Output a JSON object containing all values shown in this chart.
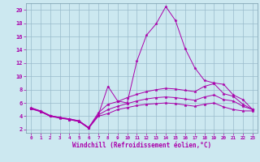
{
  "xlabel": "Windchill (Refroidissement éolien,°C)",
  "bg_color": "#cce8f0",
  "line_color": "#aa00aa",
  "grid_color": "#99bbcc",
  "xlim": [
    -0.5,
    23.5
  ],
  "ylim": [
    1.5,
    21.0
  ],
  "yticks": [
    2,
    4,
    6,
    8,
    10,
    12,
    14,
    16,
    18,
    20
  ],
  "xticks": [
    0,
    1,
    2,
    3,
    4,
    5,
    6,
    7,
    8,
    9,
    10,
    11,
    12,
    13,
    14,
    15,
    16,
    17,
    18,
    19,
    20,
    21,
    22,
    23
  ],
  "lines": [
    {
      "x": [
        0,
        1,
        2,
        3,
        4,
        5,
        6,
        7,
        8,
        9,
        10,
        11,
        12,
        13,
        14,
        15,
        16,
        17,
        18,
        19,
        20,
        21,
        22,
        23
      ],
      "y": [
        5.2,
        4.7,
        4.0,
        3.8,
        3.5,
        3.2,
        2.2,
        4.2,
        8.5,
        6.3,
        6.0,
        12.3,
        16.2,
        17.9,
        20.5,
        18.4,
        14.2,
        11.3,
        9.4,
        9.0,
        8.8,
        7.2,
        6.5,
        5.0
      ]
    },
    {
      "x": [
        0,
        1,
        2,
        3,
        4,
        5,
        6,
        7,
        8,
        9,
        10,
        11,
        12,
        13,
        14,
        15,
        16,
        17,
        18,
        19,
        20,
        21,
        22,
        23
      ],
      "y": [
        5.3,
        4.8,
        4.1,
        3.8,
        3.6,
        3.3,
        2.3,
        4.5,
        5.8,
        6.2,
        6.8,
        7.3,
        7.7,
        8.0,
        8.2,
        8.1,
        7.9,
        7.7,
        8.5,
        8.9,
        7.4,
        7.0,
        5.8,
        5.0
      ]
    },
    {
      "x": [
        0,
        1,
        2,
        3,
        4,
        5,
        6,
        7,
        8,
        9,
        10,
        11,
        12,
        13,
        14,
        15,
        16,
        17,
        18,
        19,
        20,
        21,
        22,
        23
      ],
      "y": [
        5.2,
        4.8,
        4.1,
        3.8,
        3.6,
        3.3,
        2.3,
        4.2,
        5.0,
        5.5,
        5.9,
        6.3,
        6.6,
        6.8,
        6.9,
        6.8,
        6.6,
        6.4,
        6.9,
        7.2,
        6.5,
        6.3,
        5.5,
        5.0
      ]
    },
    {
      "x": [
        0,
        1,
        2,
        3,
        4,
        5,
        6,
        7,
        8,
        9,
        10,
        11,
        12,
        13,
        14,
        15,
        16,
        17,
        18,
        19,
        20,
        21,
        22,
        23
      ],
      "y": [
        5.1,
        4.7,
        4.0,
        3.7,
        3.5,
        3.2,
        2.2,
        4.0,
        4.4,
        5.0,
        5.3,
        5.6,
        5.8,
        5.9,
        6.0,
        5.9,
        5.7,
        5.5,
        5.8,
        6.0,
        5.4,
        5.0,
        4.8,
        4.8
      ]
    }
  ]
}
